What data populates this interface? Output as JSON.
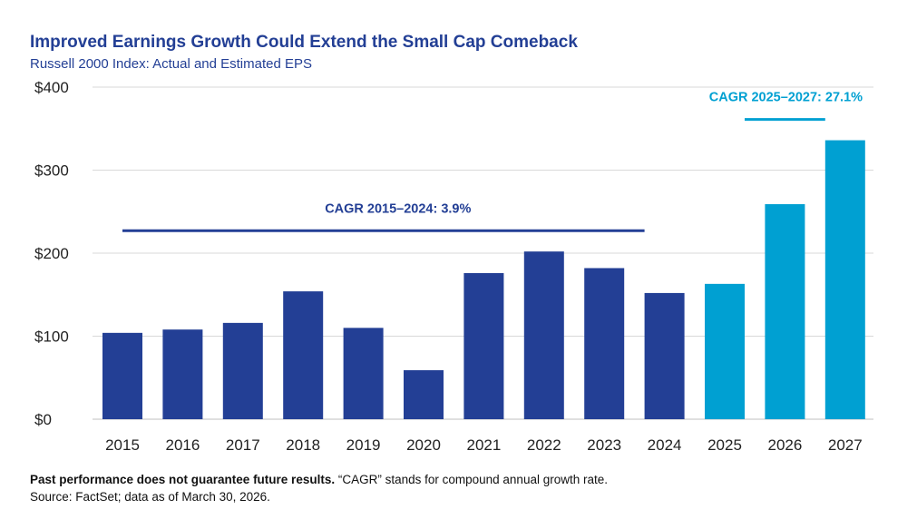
{
  "chart_data": {
    "type": "bar",
    "title": "Improved Earnings Growth Could Extend the Small Cap Comeback",
    "subtitle": "Russell 2000 Index: Actual and Estimated EPS",
    "categories": [
      "2015",
      "2016",
      "2017",
      "2018",
      "2019",
      "2020",
      "2021",
      "2022",
      "2023",
      "2024",
      "2025",
      "2026",
      "2027"
    ],
    "values": [
      104,
      108,
      116,
      154,
      110,
      59,
      176,
      202,
      182,
      152,
      163,
      259,
      336
    ],
    "estimated_from_index": 10,
    "ylim": [
      0,
      400
    ],
    "yticks": [
      0,
      100,
      200,
      300,
      400
    ],
    "ytick_labels": [
      "$0",
      "$100",
      "$200",
      "$300",
      "$400"
    ],
    "xlabel": "",
    "ylabel": "",
    "grid": true,
    "annotations": [
      {
        "label": "CAGR 2015–2024: 3.9%",
        "from": "2015",
        "to": "2024",
        "level": 227
      },
      {
        "label": "CAGR 2025–2027: 27.1%",
        "from": "2025",
        "to": "2027",
        "level": 361
      }
    ]
  },
  "colors": {
    "actual": "#233f95",
    "estimated": "#00a0d2",
    "grid": "#d9d9d9"
  },
  "footnote": {
    "bold": "Past performance does not guarantee future results.",
    "rest": " “CAGR” stands for compound annual growth rate."
  },
  "source": "Source: FactSet; data as of March 30, 2026."
}
